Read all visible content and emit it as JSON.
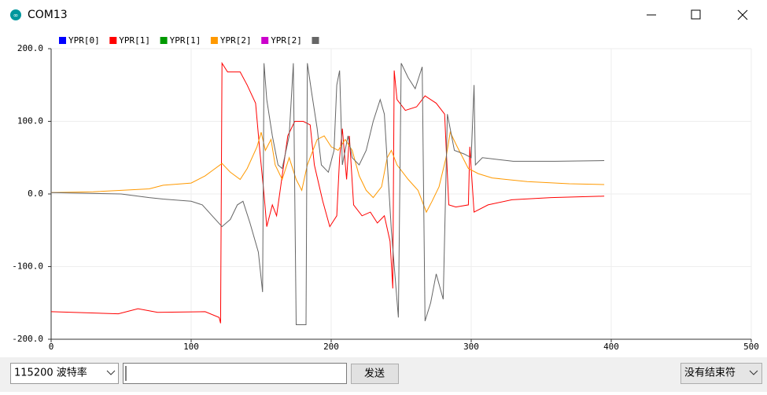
{
  "window": {
    "title": "COM13"
  },
  "chart_data": {
    "type": "line",
    "series": [
      {
        "name": "YPR[0]",
        "color": "#0000ff"
      },
      {
        "name": "YPR[1]",
        "color": "#ff0000",
        "x": [
          0,
          48,
          62,
          76,
          110,
          120,
          121,
          122,
          126,
          135,
          140,
          146,
          149,
          152,
          154,
          158,
          161,
          169,
          174,
          180,
          185,
          188,
          194,
          199,
          204,
          206,
          208,
          211,
          213,
          216,
          222,
          228,
          233,
          238,
          242,
          244,
          245,
          247,
          253,
          261,
          267,
          275,
          281,
          284,
          289,
          298,
          299,
          302,
          312,
          329,
          357,
          395
        ],
        "values": [
          -162,
          -165,
          -158,
          -163,
          -162,
          -170,
          -178,
          180,
          168,
          168,
          150,
          125,
          60,
          0,
          -45,
          -15,
          -30,
          80,
          100,
          100,
          95,
          40,
          -10,
          -45,
          -30,
          50,
          90,
          20,
          80,
          -15,
          -30,
          -25,
          -40,
          -30,
          -65,
          -130,
          170,
          130,
          115,
          120,
          135,
          125,
          110,
          -15,
          -18,
          -15,
          65,
          -25,
          -15,
          -8,
          -5,
          -3
        ]
      },
      {
        "name": "YPR[1]",
        "color": "#009900"
      },
      {
        "name": "YPR[2]",
        "color": "#ff9900",
        "x": [
          0,
          30,
          50,
          70,
          80,
          100,
          110,
          115,
          122,
          128,
          135,
          140,
          147,
          150,
          153,
          157,
          160,
          165,
          170,
          175,
          179,
          183,
          190,
          195,
          200,
          205,
          210,
          215,
          220,
          225,
          230,
          236,
          240,
          243,
          247,
          255,
          262,
          268,
          272,
          277,
          282,
          285,
          290,
          298,
          305,
          315,
          340,
          370,
          395
        ],
        "values": [
          2,
          3,
          5,
          7,
          12,
          15,
          25,
          32,
          42,
          30,
          20,
          35,
          65,
          85,
          60,
          75,
          40,
          20,
          50,
          20,
          5,
          40,
          75,
          80,
          65,
          60,
          75,
          60,
          25,
          5,
          -5,
          10,
          50,
          60,
          40,
          20,
          5,
          -25,
          -10,
          10,
          50,
          85,
          65,
          35,
          28,
          22,
          17,
          14,
          13
        ]
      },
      {
        "name": "YPR[2]",
        "color": "#cc00cc"
      },
      {
        "color": "#666666",
        "x": [
          0,
          50,
          70,
          80,
          100,
          108,
          115,
          122,
          128,
          133,
          137,
          142,
          148,
          151,
          152,
          154,
          158,
          162,
          165,
          170,
          173,
          175,
          180,
          182,
          183,
          186,
          190,
          193,
          198,
          202,
          204,
          206,
          208,
          212,
          215,
          220,
          225,
          230,
          235,
          238,
          243,
          248,
          250,
          255,
          260,
          265,
          267,
          271,
          275,
          280,
          283,
          288,
          295,
          300,
          302,
          303,
          308,
          330,
          360,
          395
        ],
        "values": [
          2,
          0,
          -5,
          -7,
          -10,
          -15,
          -30,
          -45,
          -35,
          -15,
          -10,
          -40,
          -80,
          -135,
          180,
          130,
          80,
          40,
          35,
          80,
          180,
          -180,
          -180,
          -180,
          180,
          140,
          90,
          40,
          30,
          60,
          150,
          170,
          40,
          80,
          50,
          40,
          60,
          100,
          130,
          110,
          -50,
          -170,
          180,
          160,
          145,
          175,
          -175,
          -150,
          -110,
          -145,
          110,
          60,
          55,
          50,
          150,
          40,
          50,
          45,
          45,
          46
        ]
      }
    ],
    "xlim": [
      0,
      500
    ],
    "xticks": [
      0,
      100,
      200,
      300,
      400,
      500
    ],
    "ylim": [
      -200,
      200
    ],
    "yticks": [
      {
        "value": -200,
        "label": "-200.0"
      },
      {
        "value": -100,
        "label": "-100.0"
      },
      {
        "value": 0,
        "label": "0.0"
      },
      {
        "value": 100,
        "label": "100.0"
      },
      {
        "value": 200,
        "label": "200.0"
      }
    ],
    "grid": true
  },
  "controls": {
    "baud": "115200 波特率",
    "send": "发送",
    "line_ending": "没有结束符"
  }
}
